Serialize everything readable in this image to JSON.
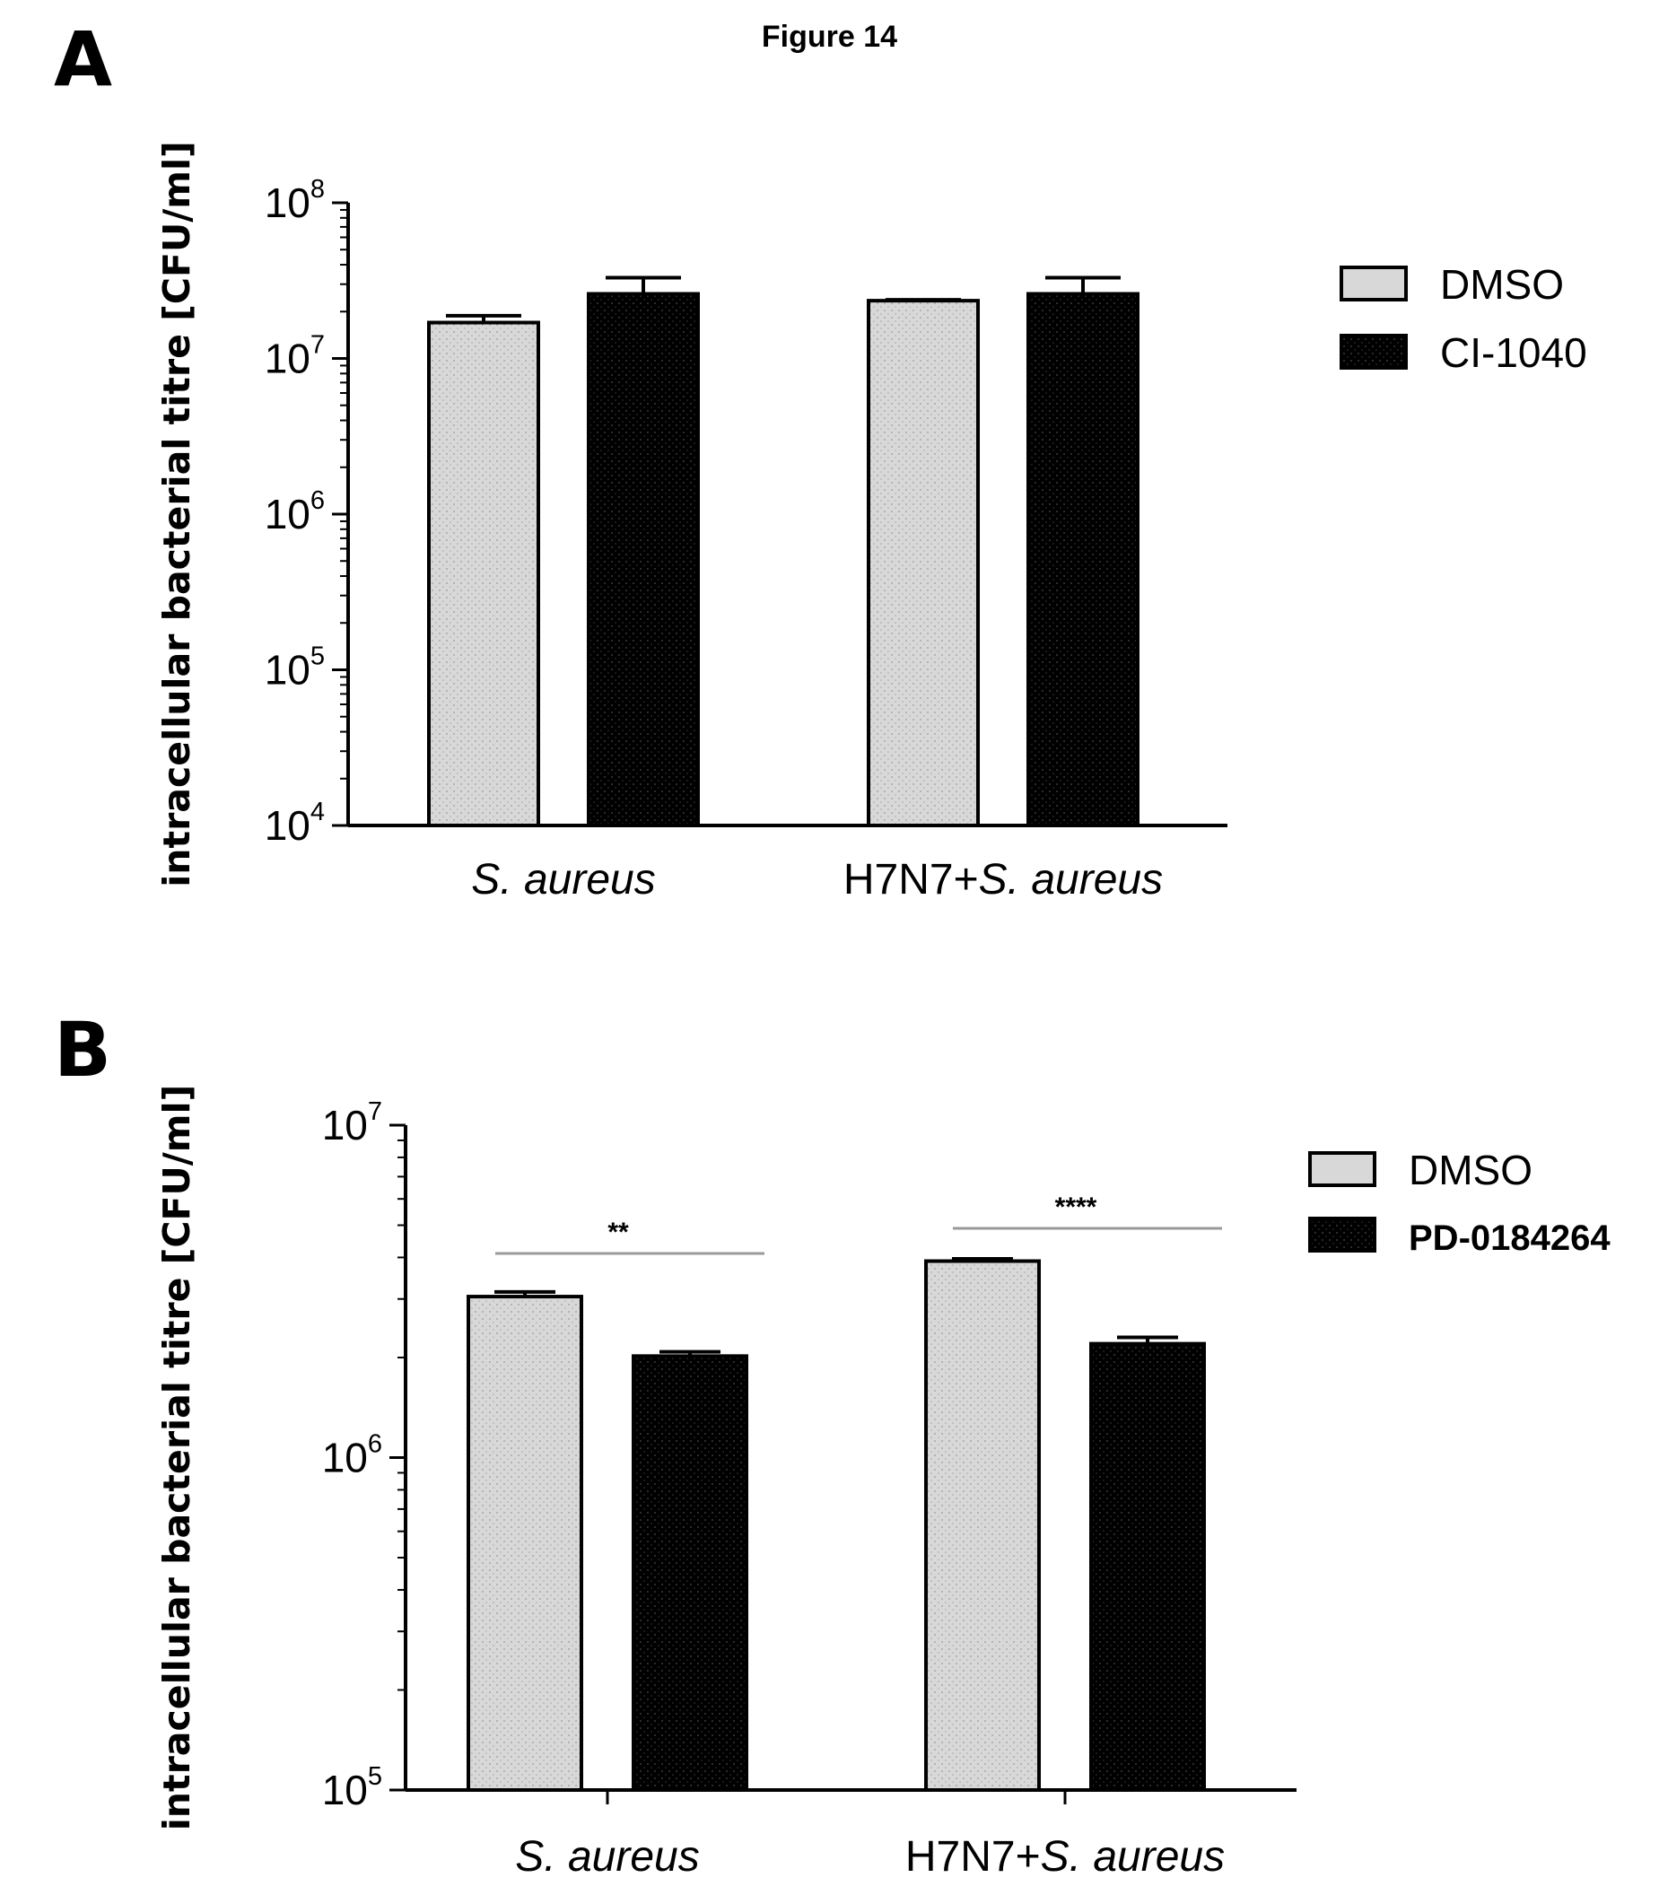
{
  "figure_title": "Figure 14",
  "colors": {
    "dmso_fill": "#d8d8d8",
    "inhibitor_fill": "#000000",
    "axis": "#000000",
    "significance_line": "#999999"
  },
  "chart_data": [
    {
      "panel": "A",
      "type": "bar",
      "title": "",
      "ylabel": "intracellular bacterial titre [CFU/ml]",
      "xlabel": "",
      "yscale": "log",
      "ylim": [
        10000,
        100000000
      ],
      "yticks": [
        {
          "base": "10",
          "exp": "4",
          "value": 10000
        },
        {
          "base": "10",
          "exp": "5",
          "value": 100000
        },
        {
          "base": "10",
          "exp": "6",
          "value": 1000000
        },
        {
          "base": "10",
          "exp": "7",
          "value": 10000000
        },
        {
          "base": "10",
          "exp": "8",
          "value": 100000000
        }
      ],
      "categories": [
        {
          "prefix": "",
          "italic": "S. aureus"
        },
        {
          "prefix": "H7N7+",
          "italic": "S. aureus"
        }
      ],
      "series": [
        {
          "name": "DMSO",
          "values": [
            17000000,
            23500000
          ],
          "errors": [
            1800000,
            300000
          ]
        },
        {
          "name": "CI-1040",
          "values": [
            26000000,
            26000000
          ],
          "errors": [
            7000000,
            7000000
          ]
        }
      ],
      "significance": [],
      "legend_position": "right"
    },
    {
      "panel": "B",
      "type": "bar",
      "title": "",
      "ylabel": "intracellular bacterial titre [CFU/ml]",
      "xlabel": "",
      "yscale": "log",
      "ylim": [
        100000,
        10000000
      ],
      "yticks": [
        {
          "base": "10",
          "exp": "5",
          "value": 100000
        },
        {
          "base": "10",
          "exp": "6",
          "value": 1000000
        },
        {
          "base": "10",
          "exp": "7",
          "value": 10000000
        }
      ],
      "categories": [
        {
          "prefix": "",
          "italic": "S. aureus"
        },
        {
          "prefix": "H7N7+",
          "italic": "S. aureus"
        }
      ],
      "series": [
        {
          "name": "DMSO",
          "values": [
            3050000,
            3900000
          ],
          "errors": [
            100000,
            60000
          ]
        },
        {
          "name": "PD-0184264",
          "values": [
            2020000,
            2200000
          ],
          "errors": [
            60000,
            100000
          ]
        }
      ],
      "significance": [
        {
          "category": 0,
          "label": "**"
        },
        {
          "category": 1,
          "label": "****"
        }
      ],
      "legend_position": "right"
    }
  ]
}
